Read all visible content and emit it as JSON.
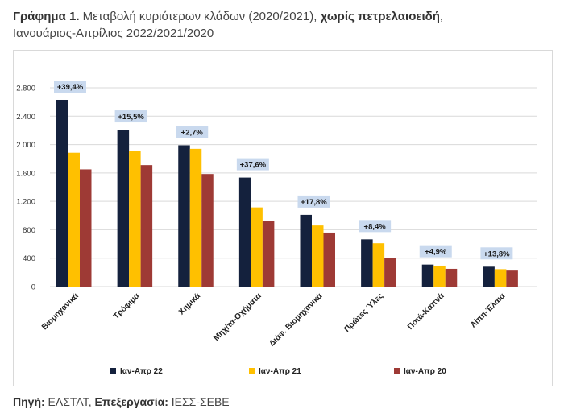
{
  "header": {
    "title_bold": "Γράφημα 1.",
    "title_mid": " Μεταβολή κυριότερων κλάδων (2020/2021), ",
    "title_bold2": "χωρίς πετρελαιοειδή",
    "title_end": ",",
    "subtitle": "Ιανουάριος-Απρίλιος 2022/2021/2020"
  },
  "footer": {
    "source_label": "Πηγή:",
    "source_value": " ΕΛΣΤΑΤ, ",
    "processing_label": "Επεξεργασία:",
    "processing_value": " ΙΕΣΣ-ΣΕΒΕ"
  },
  "chart_data": {
    "type": "bar",
    "categories": [
      "Βιομηχανικά",
      "Τρόφιμα",
      "Χημικά",
      "Μηχ/τα-Οχήματα",
      "Διάφ. Βιομηχανικά",
      "Πρώτες Ύλες",
      "Ποτά-Καπνά",
      "Λίπη-Έλαια"
    ],
    "series": [
      {
        "name": "Ιαν-Απρ 22",
        "color": "#14213d",
        "values": [
          2630,
          2210,
          1990,
          1535,
          1010,
          665,
          310,
          280
        ]
      },
      {
        "name": "Ιαν-Απρ 21",
        "color": "#ffc000",
        "values": [
          1885,
          1910,
          1940,
          1115,
          860,
          610,
          295,
          245
        ]
      },
      {
        "name": "Ιαν-Απρ 20",
        "color": "#9e3a35",
        "values": [
          1650,
          1710,
          1585,
          925,
          760,
          405,
          250,
          225
        ]
      }
    ],
    "annotations": [
      "+39,4%",
      "+15,5%",
      "+2,7%",
      "+37,6%",
      "+17,8%",
      "+8,4%",
      "+4,9%",
      "+13,8%"
    ],
    "yticks": [
      0,
      400,
      800,
      1200,
      1600,
      2000,
      2400,
      2800
    ],
    "ytick_labels": [
      "0",
      "400",
      "800",
      "1.200",
      "1.600",
      "2.000",
      "2.400",
      "2.800"
    ],
    "ylim": [
      0,
      2800
    ],
    "grid": true,
    "legend": "bottom",
    "annotation_fill": "#c9d9ee"
  }
}
